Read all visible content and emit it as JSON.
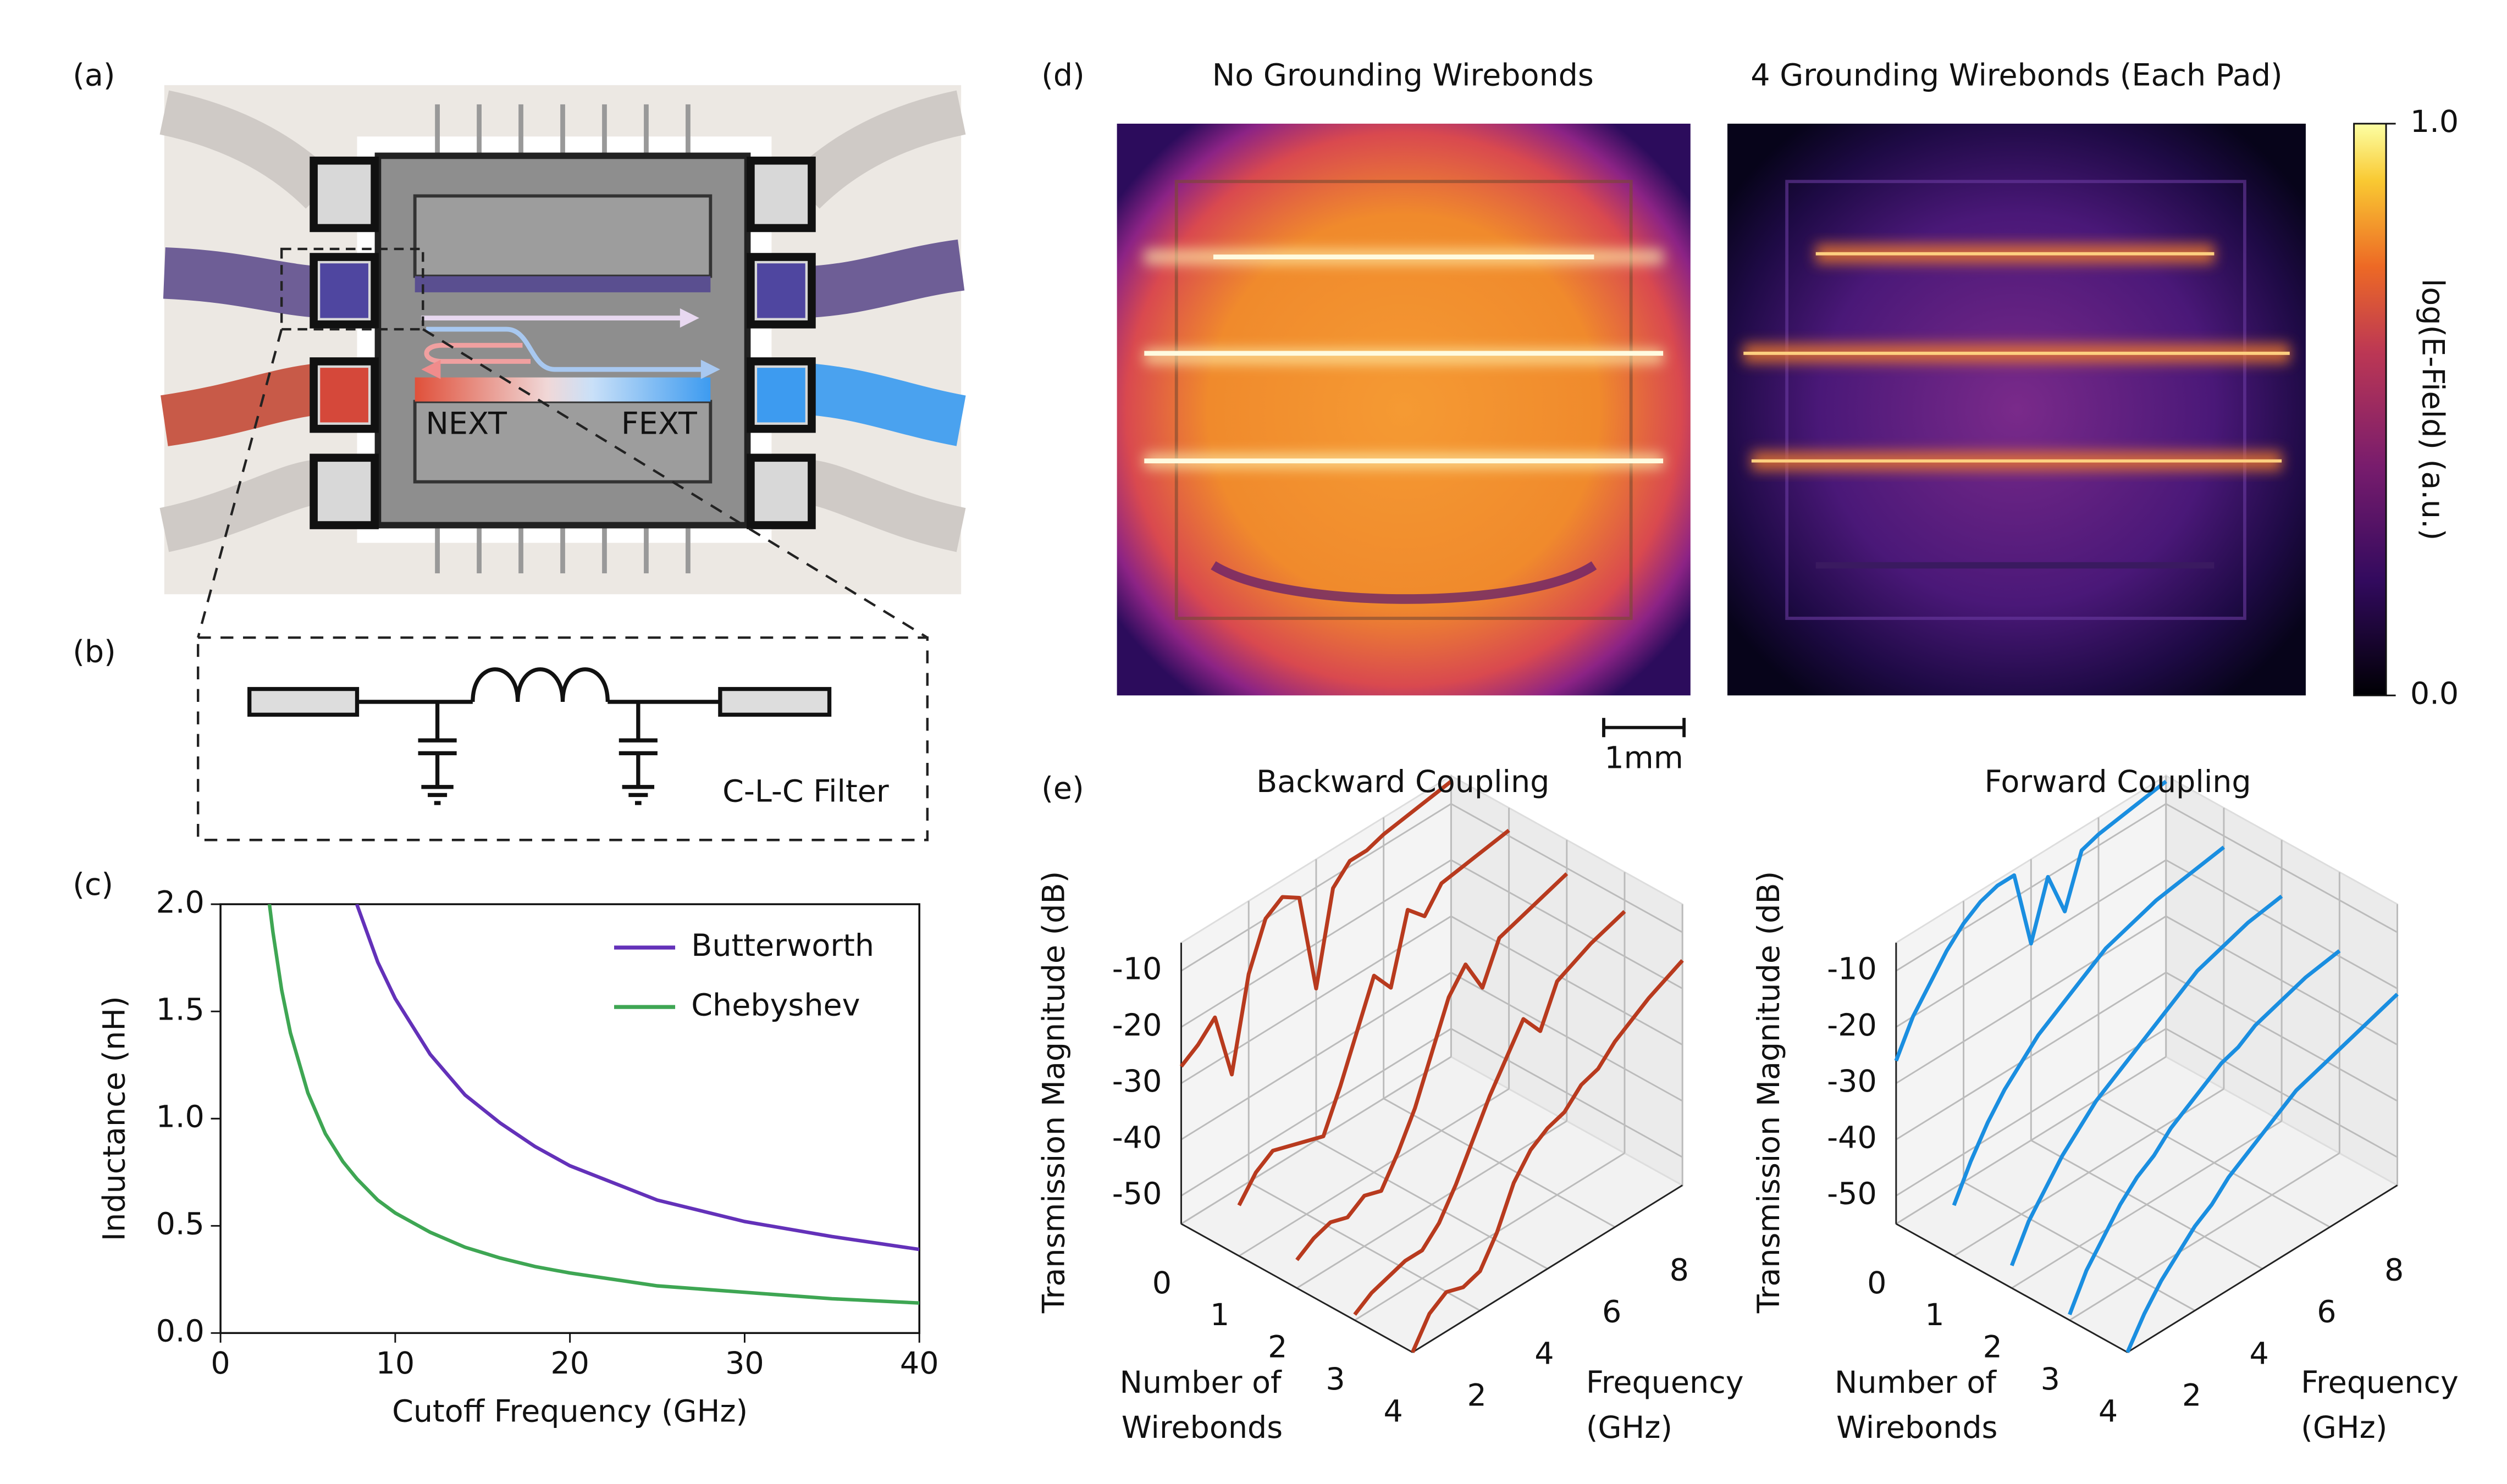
{
  "panel_labels": [
    "(a)",
    "(b)",
    "(c)",
    "(d)",
    "(e)"
  ],
  "chip": {
    "labels": [
      "NEXT",
      "FEXT"
    ]
  },
  "filter": {
    "label": "C-L-C Filter"
  },
  "field_maps": {
    "titles": [
      "No Grounding Wirebonds",
      "4 Grounding Wirebonds (Each Pad)"
    ],
    "scale_bar": "1mm",
    "colorbar": {
      "label": "log(E-Field) (a.u.)",
      "ylim": [
        0,
        1
      ],
      "yticks": [
        {
          "value": 0,
          "label": "0.0"
        },
        {
          "value": 1,
          "label": "1.0"
        }
      ]
    }
  },
  "chart_data": [
    {
      "type": "line",
      "xlabel": "Cutoff Frequency (GHz)",
      "ylabel": "Inductance (nH)",
      "x": [
        2.8,
        3,
        3.5,
        4,
        5,
        6,
        7,
        7.8,
        9,
        10,
        12,
        14,
        16,
        18,
        20,
        25,
        30,
        35,
        40
      ],
      "xlim": [
        0,
        40
      ],
      "xticks": [
        0,
        10,
        20,
        30,
        40
      ],
      "ylim": [
        0,
        2
      ],
      "yticks": [
        {
          "value": 0,
          "label": "0.0"
        },
        {
          "value": 0.5,
          "label": "0.5"
        },
        {
          "value": 1,
          "label": "1.0"
        },
        {
          "value": 1.5,
          "label": "1.5"
        },
        {
          "value": 2,
          "label": "2.0"
        }
      ],
      "legend": "upper right",
      "series": [
        {
          "name": "Butterworth",
          "color": "#6331b9",
          "values": [
            null,
            null,
            null,
            null,
            null,
            null,
            null,
            2.0,
            1.73,
            1.56,
            1.3,
            1.11,
            0.98,
            0.87,
            0.78,
            0.62,
            0.52,
            0.45,
            0.39
          ]
        },
        {
          "name": "Chebyshev",
          "color": "#3ea653",
          "values": [
            2.0,
            1.87,
            1.6,
            1.4,
            1.12,
            0.93,
            0.8,
            0.72,
            0.62,
            0.56,
            0.47,
            0.4,
            0.35,
            0.31,
            0.28,
            0.22,
            0.19,
            0.16,
            0.14
          ]
        }
      ]
    },
    {
      "type": "line3d",
      "title": "Backward Coupling",
      "xlabel": [
        "Frequency",
        "(GHz)"
      ],
      "ylabel": [
        "Number of",
        "Wirebonds"
      ],
      "zlabel": "Transmission Magnitude (dB)",
      "color": "#b83a1e",
      "x": [
        2,
        2.5,
        3,
        3.5,
        4,
        4.5,
        5,
        5.5,
        6,
        6.5,
        7,
        7.5,
        8,
        9,
        10
      ],
      "xlim": [
        2,
        10
      ],
      "xticks": [
        2,
        4,
        6,
        8
      ],
      "ylim": [
        0,
        4
      ],
      "yticks": [
        0,
        1,
        2,
        3,
        4
      ],
      "zlim": [
        -55,
        -5
      ],
      "zticks": [
        -10,
        -20,
        -30,
        -40,
        -50
      ],
      "wirebonds": [
        0,
        1,
        2,
        3,
        4
      ],
      "series": [
        {
          "values": [
            -27,
            -25,
            -22,
            -34,
            -18,
            -10,
            -8,
            -10,
            -28,
            -12,
            -9,
            -9,
            -8,
            -7,
            -6
          ]
        },
        {
          "values": [
            -46,
            -42,
            -40,
            -41,
            -42,
            -43,
            -36,
            -28,
            -20,
            -24,
            -12,
            -15,
            -11,
            -10,
            -9
          ]
        },
        {
          "values": [
            -50,
            -48,
            -47,
            -48,
            -46,
            -47,
            -42,
            -36,
            -28,
            -20,
            -16,
            -22,
            -15,
            -13,
            -11
          ]
        },
        {
          "values": [
            -54,
            -52,
            -51,
            -50,
            -50,
            -47,
            -42,
            -36,
            -30,
            -25,
            -20,
            -24,
            -17,
            -14,
            -12
          ]
        },
        {
          "values": [
            -55,
            -50,
            -48,
            -49,
            -48,
            -43,
            -36,
            -32,
            -30,
            -29,
            -26,
            -25,
            -22,
            -18,
            -15
          ]
        }
      ]
    },
    {
      "type": "line3d",
      "title": "Forward Coupling",
      "xlabel": [
        "Frequency",
        "(GHz)"
      ],
      "ylabel": [
        "Number of",
        "Wirebonds"
      ],
      "zlabel": "Transmission Magnitude (dB)",
      "color": "#1a8ee0",
      "x": [
        2,
        2.5,
        3,
        3.5,
        4,
        4.5,
        5,
        5.5,
        6,
        6.5,
        7,
        7.5,
        8,
        9,
        10
      ],
      "xlim": [
        2,
        10
      ],
      "xticks": [
        2,
        4,
        6,
        8
      ],
      "ylim": [
        0,
        4
      ],
      "yticks": [
        0,
        1,
        2,
        3,
        4
      ],
      "zlim": [
        -55,
        -5
      ],
      "zticks": [
        -10,
        -20,
        -30,
        -40,
        -50
      ],
      "wirebonds": [
        0,
        1,
        2,
        3,
        4
      ],
      "series": [
        {
          "values": [
            -26,
            -20,
            -16,
            -12,
            -9,
            -7,
            -6,
            -6,
            -20,
            -10,
            -18,
            -9,
            -8,
            -7,
            -6
          ]
        },
        {
          "values": [
            -46,
            -40,
            -35,
            -31,
            -28,
            -25,
            -23,
            -21,
            -19,
            -17,
            -16,
            -15,
            -14,
            -13,
            -12
          ]
        },
        {
          "values": [
            -51,
            -45,
            -41,
            -37,
            -34,
            -31,
            -29,
            -27,
            -25,
            -23,
            -21,
            -19,
            -18,
            -16,
            -15
          ]
        },
        {
          "values": [
            -54,
            -48,
            -44,
            -40,
            -37,
            -35,
            -32,
            -30,
            -28,
            -26,
            -25,
            -23,
            -22,
            -20,
            -19
          ]
        },
        {
          "values": [
            -55,
            -50,
            -46,
            -43,
            -40,
            -38,
            -35,
            -33,
            -31,
            -29,
            -27,
            -26,
            -25,
            -23,
            -21
          ]
        }
      ]
    }
  ]
}
